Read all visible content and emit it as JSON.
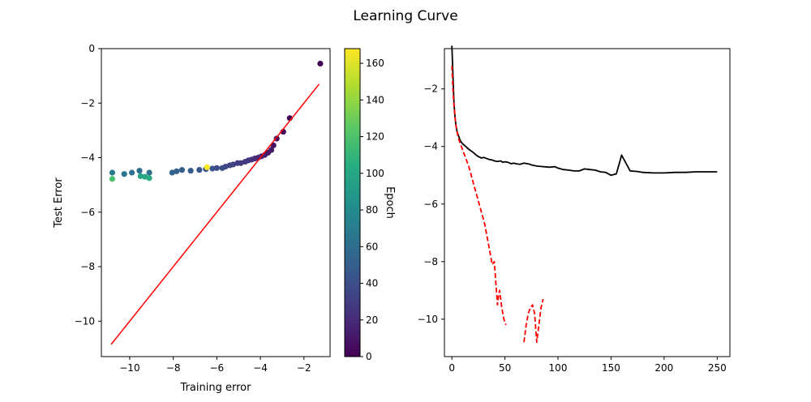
{
  "figure": {
    "title": "Learning Curve"
  },
  "chart_data": [
    {
      "type": "scatter",
      "xlabel": "Training error",
      "ylabel": "Test Error",
      "xlim": [
        -11.3,
        -0.8
      ],
      "ylim": [
        -11.3,
        0
      ],
      "xticks": [
        -10,
        -8,
        -6,
        -4,
        -2
      ],
      "yticks": [
        0,
        -2,
        -4,
        -6,
        -8,
        -10
      ],
      "colorbar": {
        "label": "Epoch",
        "range": [
          0,
          168
        ],
        "ticks": [
          0,
          20,
          40,
          60,
          80,
          100,
          120,
          140,
          160
        ],
        "colormap": "viridis"
      },
      "points": [
        {
          "x": -1.25,
          "y": -0.55,
          "epoch": 0
        },
        {
          "x": -2.65,
          "y": -2.55,
          "epoch": 2
        },
        {
          "x": -2.95,
          "y": -3.05,
          "epoch": 4
        },
        {
          "x": -3.25,
          "y": -3.3,
          "epoch": 6
        },
        {
          "x": -3.4,
          "y": -3.55,
          "epoch": 8
        },
        {
          "x": -3.5,
          "y": -3.72,
          "epoch": 10
        },
        {
          "x": -3.65,
          "y": -3.82,
          "epoch": 12
        },
        {
          "x": -3.8,
          "y": -3.9,
          "epoch": 14
        },
        {
          "x": -3.95,
          "y": -3.95,
          "epoch": 16
        },
        {
          "x": -4.1,
          "y": -4.0,
          "epoch": 18
        },
        {
          "x": -4.25,
          "y": -4.03,
          "epoch": 20
        },
        {
          "x": -4.4,
          "y": -4.07,
          "epoch": 22
        },
        {
          "x": -4.55,
          "y": -4.1,
          "epoch": 24
        },
        {
          "x": -4.7,
          "y": -4.15,
          "epoch": 26
        },
        {
          "x": -4.9,
          "y": -4.2,
          "epoch": 28
        },
        {
          "x": -5.05,
          "y": -4.2,
          "epoch": 30
        },
        {
          "x": -5.25,
          "y": -4.25,
          "epoch": 32
        },
        {
          "x": -5.4,
          "y": -4.28,
          "epoch": 34
        },
        {
          "x": -5.6,
          "y": -4.33,
          "epoch": 36
        },
        {
          "x": -5.75,
          "y": -4.38,
          "epoch": 38
        },
        {
          "x": -6.0,
          "y": -4.38,
          "epoch": 40
        },
        {
          "x": -6.2,
          "y": -4.4,
          "epoch": 42
        },
        {
          "x": -6.5,
          "y": -4.42,
          "epoch": 44
        },
        {
          "x": -6.8,
          "y": -4.45,
          "epoch": 46
        },
        {
          "x": -7.2,
          "y": -4.48,
          "epoch": 48
        },
        {
          "x": -7.6,
          "y": -4.45,
          "epoch": 50
        },
        {
          "x": -7.85,
          "y": -4.5,
          "epoch": 52
        },
        {
          "x": -8.05,
          "y": -4.55,
          "epoch": 54
        },
        {
          "x": -6.45,
          "y": -4.35,
          "epoch": 168
        },
        {
          "x": -9.1,
          "y": -4.55,
          "epoch": 60
        },
        {
          "x": -9.55,
          "y": -4.48,
          "epoch": 62
        },
        {
          "x": -9.9,
          "y": -4.55,
          "epoch": 64
        },
        {
          "x": -10.25,
          "y": -4.6,
          "epoch": 66
        },
        {
          "x": -10.8,
          "y": -4.55,
          "epoch": 68
        },
        {
          "x": -9.5,
          "y": -4.68,
          "epoch": 96
        },
        {
          "x": -9.3,
          "y": -4.7,
          "epoch": 100
        },
        {
          "x": -9.1,
          "y": -4.75,
          "epoch": 104
        },
        {
          "x": -10.8,
          "y": -4.78,
          "epoch": 118
        }
      ],
      "reference_line": {
        "color": "#ff0000",
        "x": [
          -10.85,
          -1.3
        ],
        "y": [
          -10.85,
          -1.3
        ]
      }
    },
    {
      "type": "line",
      "xlim": [
        -7,
        262
      ],
      "ylim": [
        -11.3,
        -0.6
      ],
      "xticks": [
        0,
        50,
        100,
        150,
        200,
        250
      ],
      "yticks": [
        -2,
        -4,
        -6,
        -8,
        -10
      ],
      "series": [
        {
          "color": "#000000",
          "style": "solid",
          "x": [
            0,
            1,
            2,
            3,
            4,
            5,
            6,
            7,
            8,
            10,
            13,
            16,
            20,
            23,
            25,
            28,
            30,
            33,
            35,
            38,
            40,
            43,
            46,
            48,
            50,
            53,
            56,
            58,
            61,
            64,
            68,
            72,
            76,
            80,
            86,
            92,
            97,
            100,
            105,
            110,
            115,
            120,
            125,
            130,
            135,
            140,
            145,
            150,
            155,
            160,
            168,
            175,
            180,
            190,
            200,
            210,
            220,
            230,
            240,
            250
          ],
          "y": [
            -0.5,
            -1.5,
            -2.5,
            -3.0,
            -3.3,
            -3.5,
            -3.6,
            -3.7,
            -3.8,
            -3.9,
            -4.0,
            -4.1,
            -4.2,
            -4.3,
            -4.35,
            -4.4,
            -4.38,
            -4.42,
            -4.45,
            -4.47,
            -4.5,
            -4.52,
            -4.5,
            -4.55,
            -4.53,
            -4.55,
            -4.6,
            -4.58,
            -4.6,
            -4.62,
            -4.58,
            -4.6,
            -4.65,
            -4.68,
            -4.7,
            -4.72,
            -4.7,
            -4.75,
            -4.8,
            -4.82,
            -4.85,
            -4.85,
            -4.78,
            -4.8,
            -4.82,
            -4.88,
            -4.9,
            -5.0,
            -4.95,
            -4.3,
            -4.85,
            -4.87,
            -4.9,
            -4.92,
            -4.92,
            -4.9,
            -4.9,
            -4.88,
            -4.88,
            -4.88
          ]
        },
        {
          "color": "#ff0000",
          "style": "dashed",
          "x": [
            0,
            1,
            2,
            3,
            4,
            5,
            6,
            7,
            8,
            10,
            13,
            16,
            19,
            22,
            25,
            28,
            31,
            34,
            37,
            38,
            40,
            41,
            42,
            43,
            44,
            45,
            46,
            47,
            48,
            49,
            50,
            51,
            null,
            68,
            70,
            72,
            74,
            76,
            78,
            79,
            80,
            82,
            84,
            86
          ],
          "y": [
            -1.2,
            -2.0,
            -2.6,
            -3.0,
            -3.3,
            -3.5,
            -3.7,
            -3.8,
            -3.9,
            -4.1,
            -4.4,
            -4.7,
            -5.1,
            -5.5,
            -5.9,
            -6.3,
            -6.7,
            -7.3,
            -7.9,
            -8.1,
            -8.0,
            -8.5,
            -9.0,
            -9.5,
            -9.2,
            -9.0,
            -9.3,
            -9.6,
            -9.8,
            -10.0,
            -10.1,
            -10.2,
            null,
            -10.8,
            -10.2,
            -9.8,
            -9.6,
            -9.5,
            -9.8,
            -10.3,
            -10.8,
            -10.2,
            -9.6,
            -9.3
          ]
        }
      ]
    }
  ]
}
